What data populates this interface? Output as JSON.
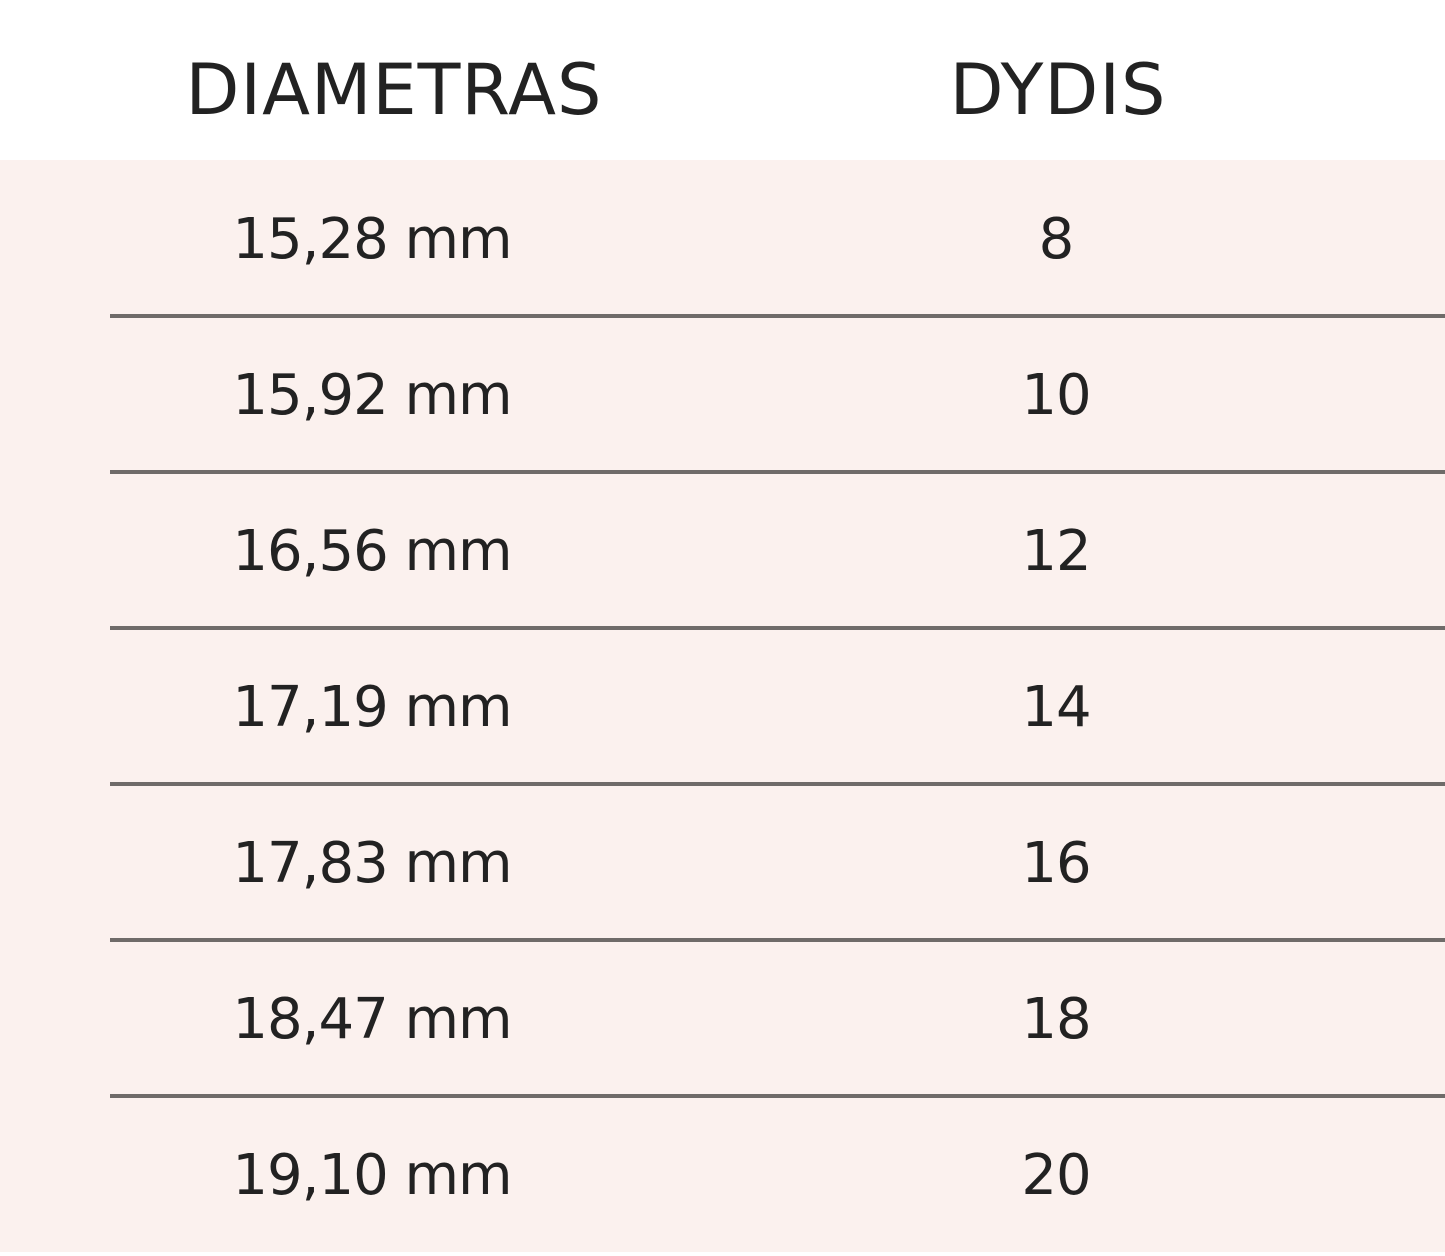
{
  "table": {
    "headers": [
      "DIAMETRAS",
      "DYDIS"
    ],
    "rows": [
      [
        "15,28 mm",
        "8"
      ],
      [
        "15,92 mm",
        "10"
      ],
      [
        "16,56 mm",
        "12"
      ],
      [
        "17,19 mm",
        "14"
      ],
      [
        "17,83 mm",
        "16"
      ],
      [
        "18,47 mm",
        "18"
      ],
      [
        "19,10 mm",
        "20"
      ]
    ]
  },
  "colors": {
    "row_background": "#fbf1ee",
    "divider": "#6f6b69",
    "text": "#222222"
  }
}
